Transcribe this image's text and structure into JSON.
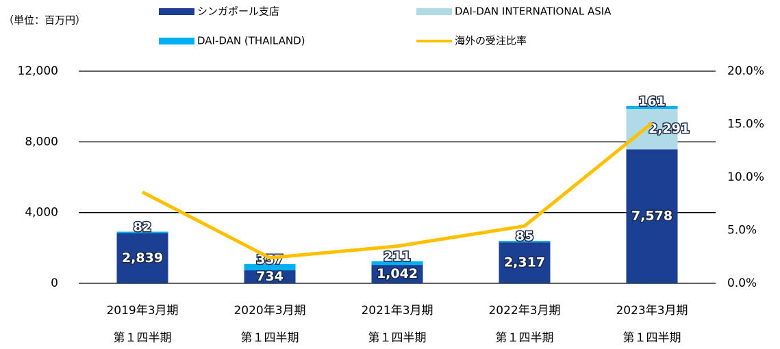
{
  "chart_data": {
    "type": "bar",
    "unit_label": "（単位：百万円）",
    "categories": [
      [
        "2019年3月期",
        "第１四半期"
      ],
      [
        "2020年3月期",
        "第１四半期"
      ],
      [
        "2021年3月期",
        "第１四半期"
      ],
      [
        "2022年3月期",
        "第１四半期"
      ],
      [
        "2023年3月期",
        "第１四半期"
      ]
    ],
    "series": [
      {
        "name": "シンガポール支店",
        "color": "#1b3f93",
        "values": [
          2839,
          734,
          1042,
          2317,
          7578
        ],
        "value_labels": [
          "2,839",
          "734",
          "1,042",
          "2,317",
          "7,578"
        ]
      },
      {
        "name": "DAI-DAN INTERNATIONAL ASIA",
        "color": "#b0dbe6",
        "values": [
          0,
          0,
          0,
          0,
          2291
        ],
        "value_labels": [
          null,
          null,
          null,
          null,
          "2,291"
        ]
      },
      {
        "name": "DAI-DAN (THAILAND)",
        "color": "#00b0f0",
        "values": [
          82,
          357,
          211,
          85,
          161
        ]
      },
      {
        "name": "海外の受注比率",
        "color": "#ffc000",
        "type": "line",
        "axis": "y2",
        "values": [
          8.6,
          2.4,
          3.5,
          5.4,
          15.1
        ]
      }
    ],
    "ylim": [
      0,
      12000
    ],
    "yticks": [
      0,
      {
        "value": 4000,
        "label": "4,000"
      },
      {
        "value": 8000,
        "label": "8,000"
      },
      {
        "value": 12000,
        "label": "12,000"
      }
    ],
    "y2lim": [
      0,
      20
    ],
    "y2ticks": [
      {
        "value": 0,
        "label": "0.0%"
      },
      {
        "value": 5,
        "label": "5.0%"
      },
      {
        "value": 10,
        "label": "10.0%"
      },
      {
        "value": 15,
        "label": "15.0%"
      },
      {
        "value": 20,
        "label": "20.0%"
      }
    ],
    "grid": true
  }
}
